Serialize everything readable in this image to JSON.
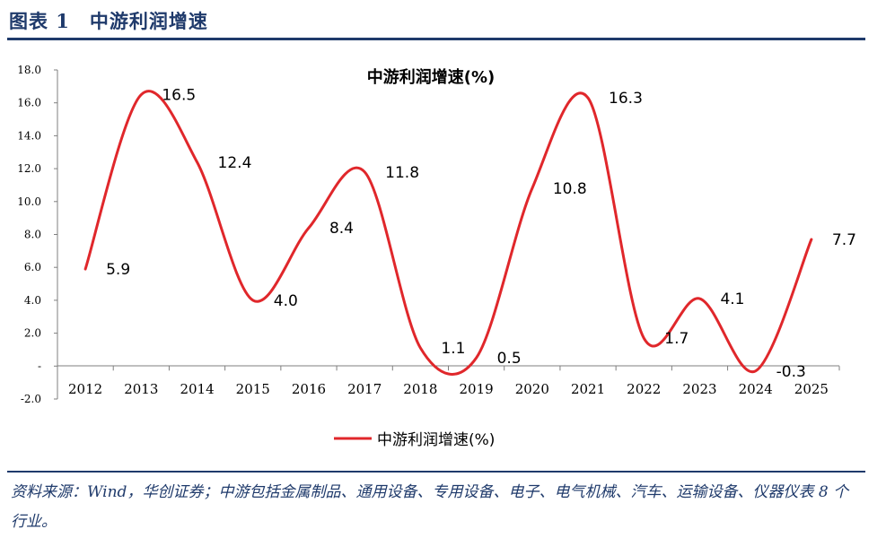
{
  "header": {
    "title": "图表 1　中游利润增速"
  },
  "chart_data": {
    "type": "line",
    "title": "中游利润增速(%)",
    "categories": [
      "2012",
      "2013",
      "2014",
      "2015",
      "2016",
      "2017",
      "2018",
      "2019",
      "2020",
      "2021",
      "2022",
      "2023",
      "2024",
      "2025"
    ],
    "series": [
      {
        "name": "中游利润增速(%)",
        "values": [
          5.9,
          16.5,
          12.4,
          4.0,
          8.4,
          11.8,
          1.1,
          0.5,
          10.8,
          16.3,
          1.7,
          4.1,
          -0.3,
          7.7
        ],
        "data_labels": [
          "5.9",
          "16.5",
          "12.4",
          "4.0",
          "8.4",
          "11.8",
          "1.1",
          "0.5",
          "10.8",
          "16.3",
          "1.7",
          "4.1",
          "-0.3",
          "7.7"
        ],
        "color": "#e0272b"
      }
    ],
    "ylim": [
      -2.0,
      18.0
    ],
    "y_ticks": [
      {
        "value": 18,
        "label": "18.0"
      },
      {
        "value": 16,
        "label": "16.0"
      },
      {
        "value": 14,
        "label": "14.0"
      },
      {
        "value": 12,
        "label": "12.0"
      },
      {
        "value": 10,
        "label": "10.0"
      },
      {
        "value": 8,
        "label": "8.0"
      },
      {
        "value": 6,
        "label": "6.0"
      },
      {
        "value": 4,
        "label": "4.0"
      },
      {
        "value": 2,
        "label": "2.0"
      },
      {
        "value": 0,
        "label": "-"
      },
      {
        "value": -2,
        "label": "-2.0"
      }
    ],
    "grid": false,
    "legend_position": "bottom"
  },
  "source_note": "资料来源：Wind，华创证券；中游包括金属制品、通用设备、专用设备、电子、电气机械、汽车、运输设备、仪器仪表 8 个行业。"
}
